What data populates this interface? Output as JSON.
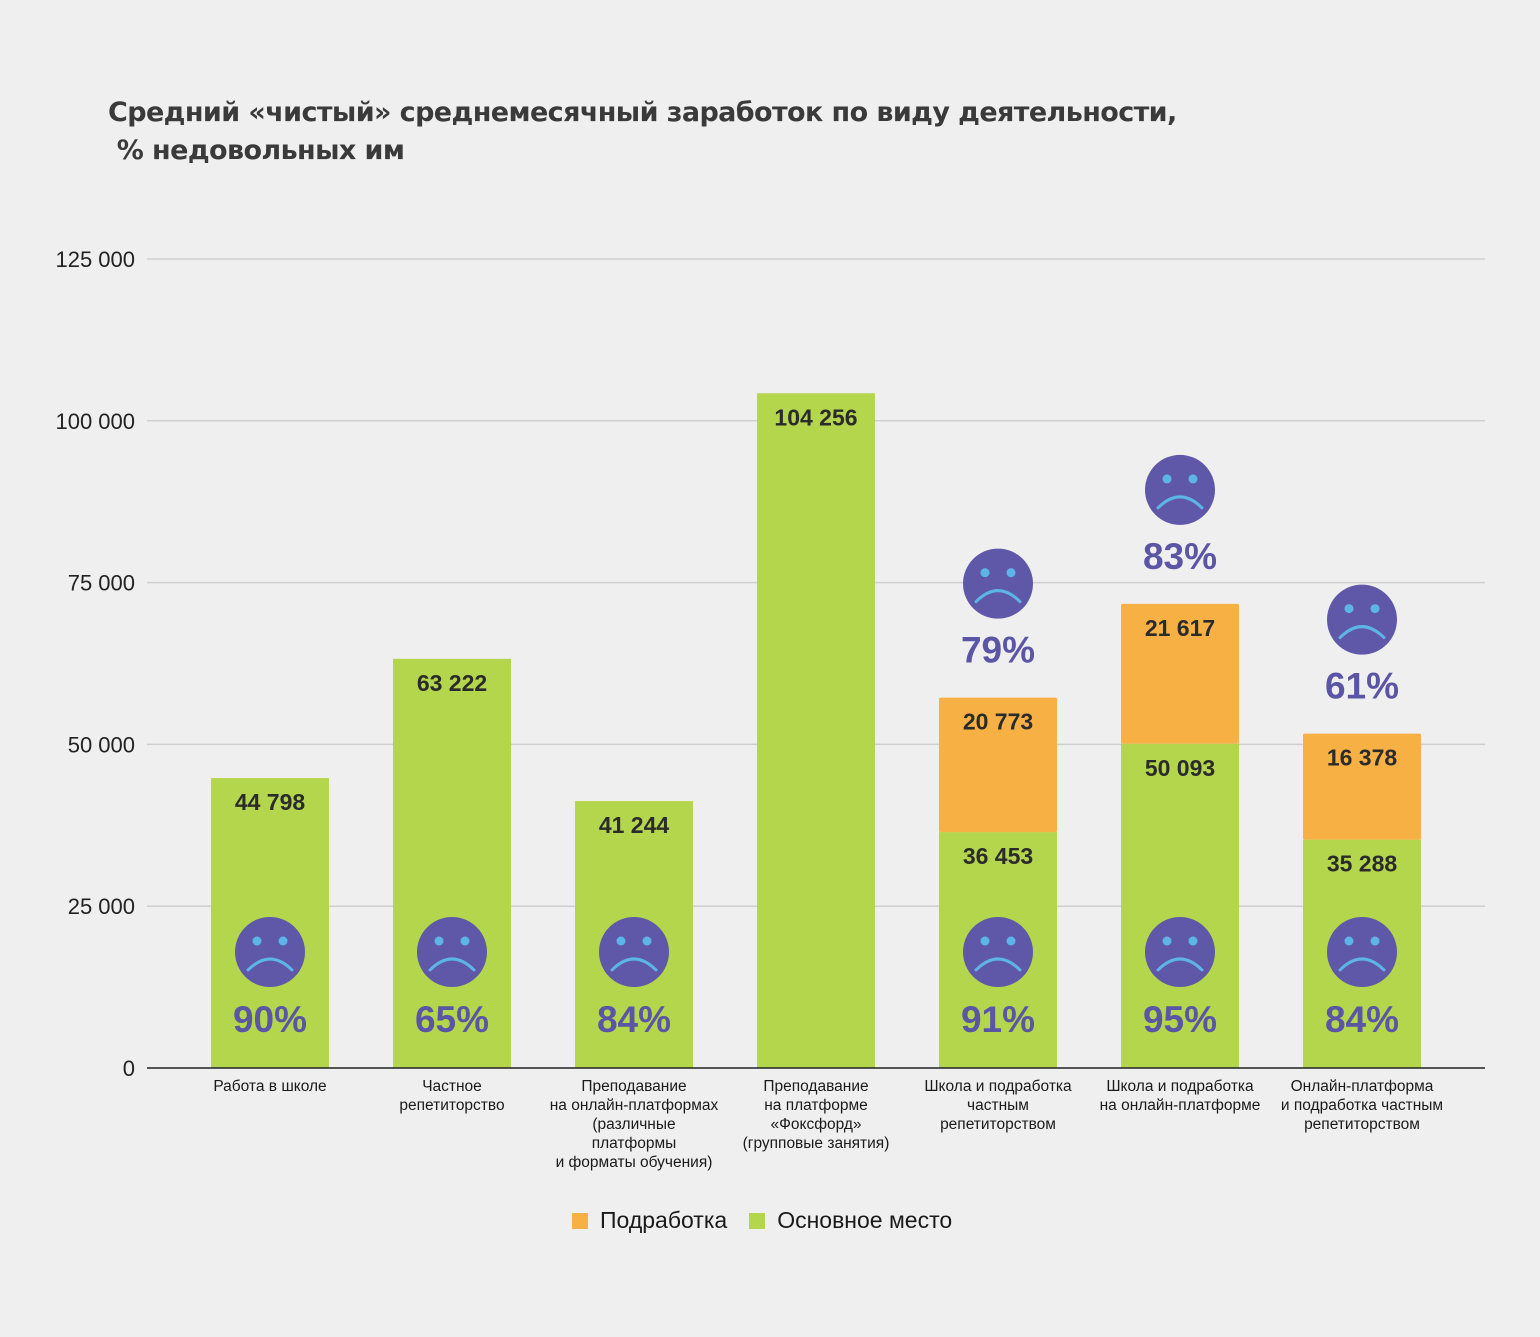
{
  "colors": {
    "main": "#b4d64c",
    "extra": "#f7b044",
    "face": "#5f58a8",
    "face_features": "#5db4e6",
    "pct_text": "#5b55a6",
    "grid": "#cfcfcf",
    "axis": "#222222"
  },
  "chart_data": {
    "type": "bar",
    "stacked": true,
    "title": "Средний «чистый» среднемесячный заработок по виду деятельности,\n % недовольных им",
    "xlabel": "",
    "ylabel": "",
    "ylim": [
      0,
      125000
    ],
    "y_ticks": [
      0,
      25000,
      50000,
      75000,
      100000,
      125000
    ],
    "y_tick_labels": [
      "0",
      "25 000",
      "50 000",
      "75 000",
      "100 000",
      "125 000"
    ],
    "grid": true,
    "legend_position": "bottom-center",
    "categories": [
      [
        "Работа в школе"
      ],
      [
        "Частное",
        "репетиторство"
      ],
      [
        "Преподавание",
        "на онлайн-платформах",
        "(различные",
        "платформы",
        "и форматы обучения)"
      ],
      [
        "Преподавание",
        "на платформе",
        "«Фоксфорд»",
        "(групповые занятия)"
      ],
      [
        "Школа и подработка",
        "частным",
        "репетиторством"
      ],
      [
        "Школа и подработка",
        "на онлайн-платформе"
      ],
      [
        "Онлайн-платформа",
        "и подработка частным",
        "репетиторством"
      ]
    ],
    "series": [
      {
        "name": "Основное место",
        "color_key": "main",
        "values": [
          44798,
          63222,
          41244,
          104256,
          36453,
          50093,
          35288
        ],
        "labels": [
          "44 798",
          "63 222",
          "41 244",
          "104 256",
          "36 453",
          "50 093",
          "35 288"
        ],
        "dissatisfied_pct": [
          90,
          65,
          84,
          null,
          91,
          95,
          84
        ],
        "dissatisfied_labels": [
          "90%",
          "65%",
          "84%",
          null,
          "91%",
          "95%",
          "84%"
        ]
      },
      {
        "name": "Подработка",
        "color_key": "extra",
        "values": [
          null,
          null,
          null,
          null,
          20773,
          21617,
          16378
        ],
        "labels": [
          null,
          null,
          null,
          null,
          "20 773",
          "21 617",
          "16 378"
        ],
        "dissatisfied_pct": [
          null,
          null,
          null,
          null,
          79,
          83,
          61
        ],
        "dissatisfied_labels": [
          null,
          null,
          null,
          null,
          "79%",
          "83%",
          "61%"
        ]
      }
    ],
    "legend": [
      "Подработка",
      "Основное место"
    ]
  }
}
